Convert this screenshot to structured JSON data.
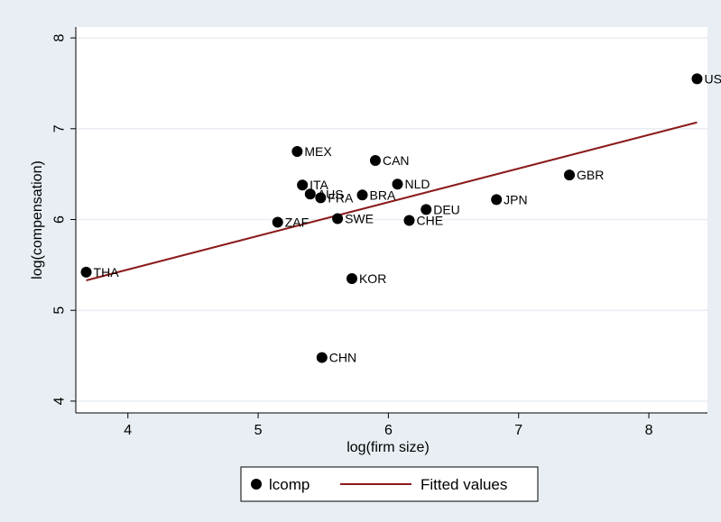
{
  "chart_data": {
    "type": "scatter",
    "xlabel": "log(firm size)",
    "ylabel": "log(compensation)",
    "xlim": [
      3.6,
      8.45
    ],
    "ylim": [
      3.87,
      8.12
    ],
    "xticks": [
      4,
      5,
      6,
      7,
      8
    ],
    "yticks": [
      4,
      5,
      6,
      7,
      8
    ],
    "grid": "horizontal",
    "legend_position": "bottom",
    "colors": {
      "points": "#000000",
      "fit": "#8b1a1a",
      "panel": "#ffffff",
      "background": "#e8eef3",
      "grid": "#e8eef3"
    },
    "series": [
      {
        "name": "lcomp",
        "points": [
          {
            "label": "USA",
            "x": 8.37,
            "y": 7.55
          },
          {
            "label": "GBR",
            "x": 7.39,
            "y": 6.49
          },
          {
            "label": "JPN",
            "x": 6.83,
            "y": 6.22
          },
          {
            "label": "DEU",
            "x": 6.29,
            "y": 6.11
          },
          {
            "label": "CHE",
            "x": 6.16,
            "y": 5.99
          },
          {
            "label": "NLD",
            "x": 6.07,
            "y": 6.39
          },
          {
            "label": "CAN",
            "x": 5.9,
            "y": 6.65
          },
          {
            "label": "BRA",
            "x": 5.8,
            "y": 6.27
          },
          {
            "label": "SWE",
            "x": 5.61,
            "y": 6.01
          },
          {
            "label": "KOR",
            "x": 5.72,
            "y": 5.35
          },
          {
            "label": "CHN",
            "x": 5.49,
            "y": 4.48
          },
          {
            "label": "FRA",
            "x": 5.48,
            "y": 6.24
          },
          {
            "label": "AUS",
            "x": 5.4,
            "y": 6.28
          },
          {
            "label": "ITA",
            "x": 5.34,
            "y": 6.38
          },
          {
            "label": "MEX",
            "x": 5.3,
            "y": 6.75
          },
          {
            "label": "ZAF",
            "x": 5.15,
            "y": 5.97
          },
          {
            "label": "THA",
            "x": 3.68,
            "y": 5.42
          }
        ]
      },
      {
        "name": "Fitted values",
        "type": "line",
        "x": [
          3.68,
          8.37
        ],
        "values": [
          5.33,
          7.07
        ]
      }
    ]
  }
}
